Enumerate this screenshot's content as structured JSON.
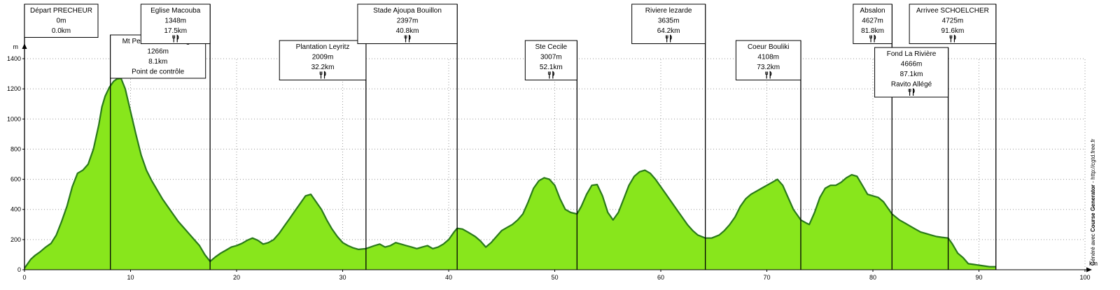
{
  "chart_data": {
    "type": "area",
    "title": "",
    "xlabel": "km",
    "ylabel": "m",
    "xlim": [
      0,
      100
    ],
    "ylim": [
      0,
      1400
    ],
    "x_ticks": [
      0,
      10,
      20,
      30,
      40,
      50,
      60,
      70,
      80,
      90,
      100
    ],
    "y_ticks": [
      200,
      400,
      600,
      800,
      1000,
      1200,
      1400
    ],
    "grid": true,
    "fill_color": "#88e61c",
    "line_color": "#2a7a1a",
    "profile": [
      [
        0,
        10
      ],
      [
        0.3,
        40
      ],
      [
        0.6,
        70
      ],
      [
        1,
        95
      ],
      [
        1.5,
        120
      ],
      [
        2,
        150
      ],
      [
        2.5,
        175
      ],
      [
        3,
        230
      ],
      [
        3.5,
        320
      ],
      [
        4,
        420
      ],
      [
        4.5,
        550
      ],
      [
        5,
        640
      ],
      [
        5.5,
        660
      ],
      [
        6,
        700
      ],
      [
        6.5,
        800
      ],
      [
        7,
        960
      ],
      [
        7.3,
        1080
      ],
      [
        7.6,
        1150
      ],
      [
        8,
        1210
      ],
      [
        8.4,
        1250
      ],
      [
        8.7,
        1265
      ],
      [
        9.1,
        1270
      ],
      [
        9.5,
        1200
      ],
      [
        10,
        1050
      ],
      [
        10.5,
        900
      ],
      [
        11,
        760
      ],
      [
        11.5,
        660
      ],
      [
        12,
        590
      ],
      [
        12.5,
        530
      ],
      [
        13,
        470
      ],
      [
        13.5,
        420
      ],
      [
        14,
        370
      ],
      [
        14.5,
        320
      ],
      [
        15,
        280
      ],
      [
        15.5,
        240
      ],
      [
        16,
        200
      ],
      [
        16.5,
        160
      ],
      [
        17,
        100
      ],
      [
        17.5,
        55
      ],
      [
        18,
        85
      ],
      [
        18.5,
        110
      ],
      [
        19,
        130
      ],
      [
        19.5,
        150
      ],
      [
        20,
        160
      ],
      [
        20.5,
        175
      ],
      [
        21,
        195
      ],
      [
        21.5,
        210
      ],
      [
        22,
        195
      ],
      [
        22.5,
        170
      ],
      [
        23,
        180
      ],
      [
        23.5,
        200
      ],
      [
        24,
        240
      ],
      [
        24.5,
        290
      ],
      [
        25,
        340
      ],
      [
        25.5,
        390
      ],
      [
        26,
        440
      ],
      [
        26.5,
        490
      ],
      [
        27,
        500
      ],
      [
        27.5,
        450
      ],
      [
        28,
        400
      ],
      [
        28.5,
        330
      ],
      [
        29,
        270
      ],
      [
        29.5,
        220
      ],
      [
        30,
        180
      ],
      [
        30.5,
        160
      ],
      [
        31,
        145
      ],
      [
        31.5,
        135
      ],
      [
        32.2,
        140
      ],
      [
        33,
        160
      ],
      [
        33.5,
        170
      ],
      [
        34,
        150
      ],
      [
        34.5,
        160
      ],
      [
        35,
        180
      ],
      [
        35.5,
        170
      ],
      [
        36,
        160
      ],
      [
        36.5,
        150
      ],
      [
        37,
        140
      ],
      [
        37.5,
        150
      ],
      [
        38,
        160
      ],
      [
        38.5,
        140
      ],
      [
        39,
        150
      ],
      [
        39.5,
        170
      ],
      [
        40,
        200
      ],
      [
        40.5,
        250
      ],
      [
        40.8,
        275
      ],
      [
        41.3,
        270
      ],
      [
        41.8,
        250
      ],
      [
        42.5,
        220
      ],
      [
        43,
        190
      ],
      [
        43.5,
        150
      ],
      [
        44,
        180
      ],
      [
        44.5,
        220
      ],
      [
        45,
        260
      ],
      [
        45.5,
        280
      ],
      [
        46,
        300
      ],
      [
        46.5,
        330
      ],
      [
        47,
        370
      ],
      [
        47.5,
        450
      ],
      [
        48,
        540
      ],
      [
        48.5,
        590
      ],
      [
        49,
        610
      ],
      [
        49.5,
        600
      ],
      [
        50,
        560
      ],
      [
        50.5,
        470
      ],
      [
        51,
        400
      ],
      [
        51.5,
        380
      ],
      [
        52.1,
        370
      ],
      [
        52.5,
        420
      ],
      [
        53,
        500
      ],
      [
        53.5,
        560
      ],
      [
        54,
        565
      ],
      [
        54.5,
        490
      ],
      [
        55,
        380
      ],
      [
        55.5,
        330
      ],
      [
        56,
        380
      ],
      [
        56.5,
        470
      ],
      [
        57,
        560
      ],
      [
        57.5,
        620
      ],
      [
        58,
        650
      ],
      [
        58.5,
        660
      ],
      [
        59,
        640
      ],
      [
        59.5,
        600
      ],
      [
        60,
        550
      ],
      [
        60.5,
        500
      ],
      [
        61,
        450
      ],
      [
        61.5,
        400
      ],
      [
        62,
        350
      ],
      [
        62.5,
        300
      ],
      [
        63,
        260
      ],
      [
        63.5,
        230
      ],
      [
        64.2,
        210
      ],
      [
        64.8,
        210
      ],
      [
        65.5,
        230
      ],
      [
        66,
        260
      ],
      [
        66.5,
        300
      ],
      [
        67,
        350
      ],
      [
        67.5,
        420
      ],
      [
        68,
        470
      ],
      [
        68.5,
        500
      ],
      [
        69,
        520
      ],
      [
        69.5,
        540
      ],
      [
        70,
        560
      ],
      [
        70.5,
        580
      ],
      [
        71,
        600
      ],
      [
        71.5,
        560
      ],
      [
        72,
        480
      ],
      [
        72.5,
        400
      ],
      [
        73.2,
        330
      ],
      [
        73.7,
        310
      ],
      [
        74,
        300
      ],
      [
        74.5,
        380
      ],
      [
        75,
        480
      ],
      [
        75.5,
        540
      ],
      [
        76,
        560
      ],
      [
        76.5,
        560
      ],
      [
        77,
        580
      ],
      [
        77.5,
        610
      ],
      [
        78,
        630
      ],
      [
        78.5,
        620
      ],
      [
        79,
        560
      ],
      [
        79.5,
        500
      ],
      [
        80,
        490
      ],
      [
        80.5,
        480
      ],
      [
        81,
        450
      ],
      [
        81.8,
        370
      ],
      [
        82.5,
        330
      ],
      [
        83,
        310
      ],
      [
        83.5,
        290
      ],
      [
        84,
        270
      ],
      [
        84.5,
        250
      ],
      [
        85,
        240
      ],
      [
        85.5,
        230
      ],
      [
        86,
        220
      ],
      [
        86.5,
        215
      ],
      [
        87.1,
        210
      ],
      [
        87.5,
        170
      ],
      [
        88,
        110
      ],
      [
        88.5,
        80
      ],
      [
        89,
        40
      ],
      [
        89.5,
        35
      ],
      [
        90,
        30
      ],
      [
        90.5,
        25
      ],
      [
        91,
        20
      ],
      [
        91.6,
        20
      ]
    ],
    "checkpoints": [
      {
        "name": "Départ PRECHEUR",
        "alt": "0m",
        "dist": "0.0km",
        "note": "",
        "km": 0.0,
        "icon": "none"
      },
      {
        "name": "Mt Pelée 2eme Refuge",
        "alt": "1266m",
        "dist": "8.1km",
        "note": "Point de contrôle",
        "km": 8.1,
        "icon": "none"
      },
      {
        "name": "Eglise Macouba",
        "alt": "1348m",
        "dist": "17.5km",
        "note": "",
        "km": 17.5,
        "icon": "fork-knife-icon"
      },
      {
        "name": "Plantation Leyritz",
        "alt": "2009m",
        "dist": "32.2km",
        "note": "",
        "km": 32.2,
        "icon": "fork-knife-icon"
      },
      {
        "name": "Stade Ajoupa Bouillon",
        "alt": "2397m",
        "dist": "40.8km",
        "note": "",
        "km": 40.8,
        "icon": "fork-knife-icon"
      },
      {
        "name": "Ste Cecile",
        "alt": "3007m",
        "dist": "52.1km",
        "note": "",
        "km": 52.1,
        "icon": "fork-knife-icon"
      },
      {
        "name": "Riviere lezarde",
        "alt": "3635m",
        "dist": "64.2km",
        "note": "",
        "km": 64.2,
        "icon": "fork-knife-icon"
      },
      {
        "name": "Coeur Bouliki",
        "alt": "4108m",
        "dist": "73.2km",
        "note": "",
        "km": 73.2,
        "icon": "fork-knife-icon"
      },
      {
        "name": "Absalon",
        "alt": "4627m",
        "dist": "81.8km",
        "note": "",
        "km": 81.8,
        "icon": "fork-knife-icon"
      },
      {
        "name": "Fond La Rivière",
        "alt": "4666m",
        "dist": "87.1km",
        "note": "Ravito Allégé",
        "km": 87.1,
        "icon": "fork-knife-icon"
      },
      {
        "name": "Arrivee SCHOELCHER",
        "alt": "4725m",
        "dist": "91.6km",
        "note": "",
        "km": 91.6,
        "icon": "fork-knife-icon"
      }
    ]
  },
  "credit": {
    "prefix": "Généré avec ",
    "brand": "Course Generator",
    "suffix": " - http://cgtd.free.fr"
  }
}
